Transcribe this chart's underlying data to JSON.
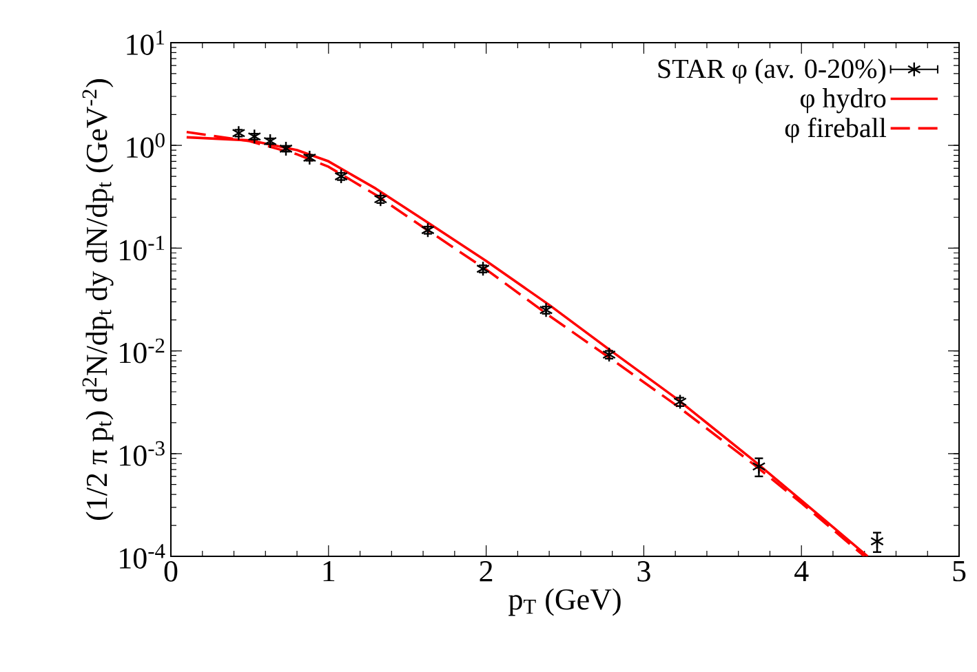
{
  "chart_data": {
    "type": "line",
    "xlabel": "p$_{T}$ (GeV)",
    "ylabel": "(1/2 π p$_{t}$) d$^{2}$N/dp$_{t}$ dy dN/dp$_{t}$ (GeV$^{-2}$)",
    "log": "y",
    "legend": "top right",
    "grid": false,
    "xlim": [
      0,
      5
    ],
    "xticks": [
      0,
      1,
      2,
      3,
      4,
      5
    ],
    "ylim": [
      0.0001,
      10
    ],
    "yticks": [
      {
        "value": 0.0001,
        "label": "10$^{-4}$"
      },
      {
        "value": 0.001,
        "label": "10$^{-3}$"
      },
      {
        "value": 0.01,
        "label": "10$^{-2}$"
      },
      {
        "value": 0.1,
        "label": "10$^{-1}$"
      },
      {
        "value": 1,
        "label": "10$^{0}$"
      },
      {
        "value": 10,
        "label": "10$^{1}$"
      }
    ],
    "series": [
      {
        "name": "STAR φ (av. 0-20%)",
        "type": "scatter",
        "marker": "cross",
        "color": "#000000",
        "x": [
          0.43,
          0.53,
          0.63,
          0.73,
          0.88,
          1.08,
          1.33,
          1.63,
          1.98,
          2.38,
          2.78,
          3.23,
          3.73,
          4.48
        ],
        "values": [
          1.32,
          1.22,
          1.1,
          0.93,
          0.76,
          0.5,
          0.3,
          0.15,
          0.063,
          0.025,
          0.0092,
          0.0032,
          0.00075,
          0.00014
        ],
        "errors": [
          0.1,
          0.08,
          0.07,
          0.06,
          0.05,
          0.04,
          0.025,
          0.012,
          0.005,
          0.002,
          0.0008,
          0.0003,
          0.00015,
          3e-05
        ]
      },
      {
        "name": "φ hydro",
        "line_style": "solid",
        "color": "#ff0000",
        "x": [
          0.1,
          0.5,
          0.8,
          1.0,
          1.3,
          1.6,
          2.0,
          2.4,
          2.8,
          3.2,
          3.7,
          4.0,
          4.42
        ],
        "values": [
          1.2,
          1.12,
          0.9,
          0.7,
          0.38,
          0.19,
          0.075,
          0.028,
          0.0098,
          0.0035,
          0.00085,
          0.00035,
          0.0001
        ]
      },
      {
        "name": "φ fireball",
        "line_style": "dashed",
        "color": "#ff0000",
        "x": [
          0.1,
          0.5,
          0.8,
          1.0,
          1.3,
          1.6,
          2.0,
          2.4,
          2.8,
          3.2,
          3.7,
          4.0,
          4.4
        ],
        "values": [
          1.35,
          1.1,
          0.82,
          0.62,
          0.33,
          0.16,
          0.062,
          0.022,
          0.0082,
          0.003,
          0.00078,
          0.00033,
          0.0001
        ]
      }
    ]
  }
}
